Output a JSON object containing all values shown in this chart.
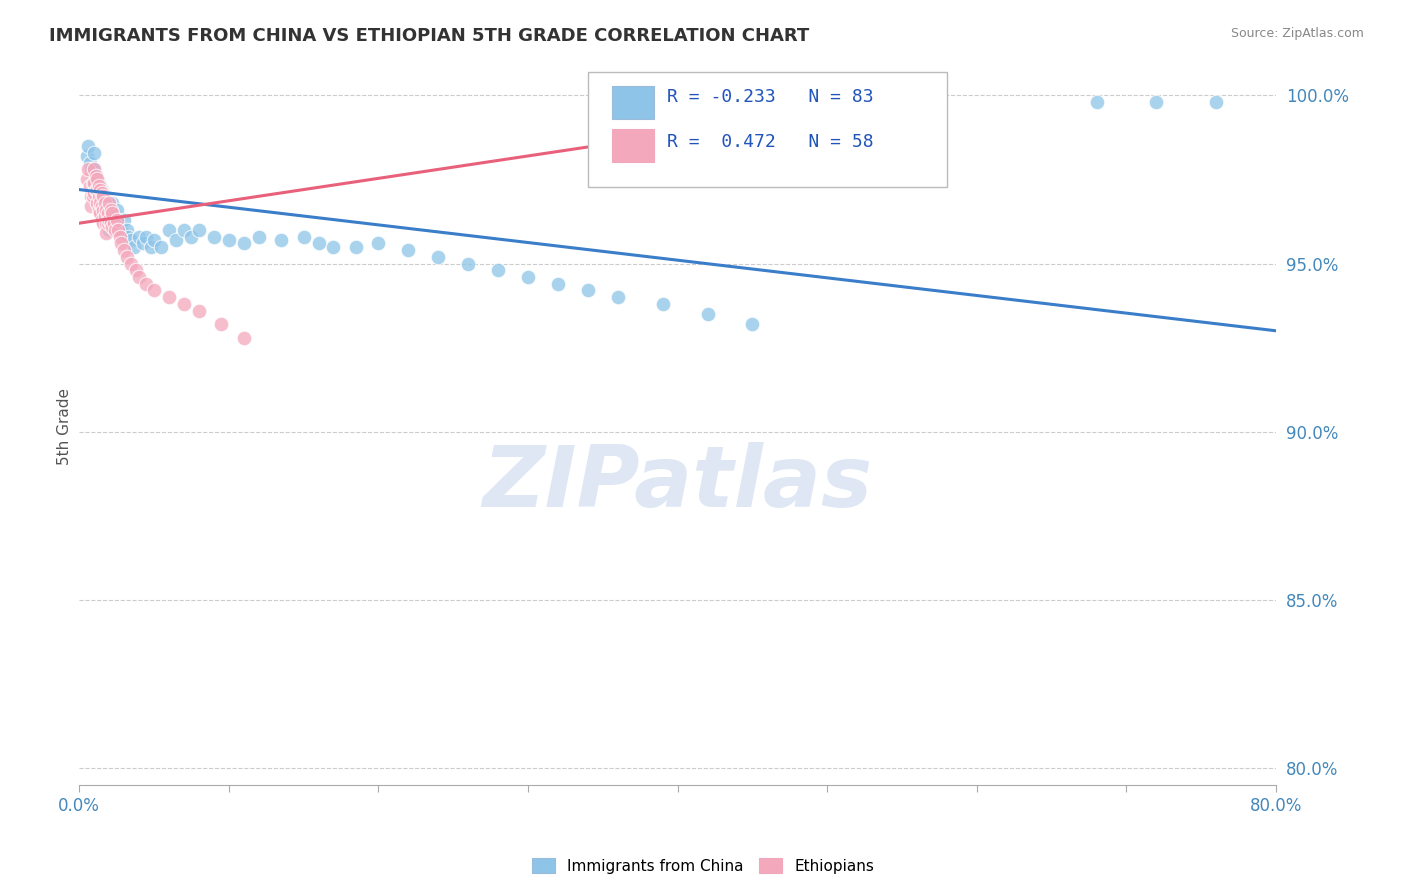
{
  "title": "IMMIGRANTS FROM CHINA VS ETHIOPIAN 5TH GRADE CORRELATION CHART",
  "source_text": "Source: ZipAtlas.com",
  "ylabel": "5th Grade",
  "xlim": [
    0.0,
    0.8
  ],
  "ylim": [
    0.795,
    1.008
  ],
  "xticks": [
    0.0,
    0.1,
    0.2,
    0.3,
    0.4,
    0.5,
    0.6,
    0.7,
    0.8
  ],
  "xticklabels": [
    "0.0%",
    "",
    "",
    "",
    "",
    "",
    "",
    "",
    "80.0%"
  ],
  "yticks": [
    0.8,
    0.85,
    0.9,
    0.95,
    1.0
  ],
  "yticklabels": [
    "80.0%",
    "85.0%",
    "90.0%",
    "95.0%",
    "100.0%"
  ],
  "legend_blue_label": "Immigrants from China",
  "legend_pink_label": "Ethiopians",
  "R_blue": -0.233,
  "N_blue": 83,
  "R_pink": 0.472,
  "N_pink": 58,
  "blue_color": "#8DC4E8",
  "pink_color": "#F4A8BC",
  "blue_line_color": "#3A7DC9",
  "pink_line_color": "#E8607A",
  "watermark_color": "#C8D8EC",
  "blue_line_x0": 0.0,
  "blue_line_y0": 0.972,
  "blue_line_x1": 0.8,
  "blue_line_y1": 0.93,
  "pink_line_x0": 0.0,
  "pink_line_y0": 0.962,
  "pink_line_x1": 0.42,
  "pink_line_y1": 0.99,
  "blue_scatter_x": [
    0.005,
    0.006,
    0.007,
    0.008,
    0.009,
    0.01,
    0.01,
    0.011,
    0.011,
    0.012,
    0.012,
    0.013,
    0.013,
    0.013,
    0.014,
    0.014,
    0.014,
    0.015,
    0.015,
    0.015,
    0.016,
    0.016,
    0.016,
    0.017,
    0.017,
    0.018,
    0.018,
    0.019,
    0.019,
    0.02,
    0.02,
    0.02,
    0.021,
    0.022,
    0.022,
    0.023,
    0.024,
    0.025,
    0.025,
    0.026,
    0.027,
    0.028,
    0.029,
    0.03,
    0.032,
    0.033,
    0.035,
    0.037,
    0.04,
    0.043,
    0.045,
    0.048,
    0.05,
    0.055,
    0.06,
    0.065,
    0.07,
    0.075,
    0.08,
    0.09,
    0.1,
    0.11,
    0.12,
    0.135,
    0.15,
    0.16,
    0.17,
    0.185,
    0.2,
    0.22,
    0.24,
    0.26,
    0.28,
    0.3,
    0.32,
    0.34,
    0.36,
    0.39,
    0.42,
    0.45,
    0.68,
    0.72,
    0.76
  ],
  "blue_scatter_y": [
    0.982,
    0.985,
    0.98,
    0.978,
    0.975,
    0.983,
    0.978,
    0.976,
    0.972,
    0.975,
    0.971,
    0.974,
    0.97,
    0.968,
    0.973,
    0.969,
    0.966,
    0.972,
    0.968,
    0.965,
    0.971,
    0.967,
    0.964,
    0.97,
    0.966,
    0.969,
    0.965,
    0.968,
    0.964,
    0.967,
    0.963,
    0.96,
    0.966,
    0.968,
    0.964,
    0.965,
    0.963,
    0.966,
    0.962,
    0.963,
    0.961,
    0.96,
    0.959,
    0.963,
    0.96,
    0.958,
    0.957,
    0.955,
    0.958,
    0.956,
    0.958,
    0.955,
    0.957,
    0.955,
    0.96,
    0.957,
    0.96,
    0.958,
    0.96,
    0.958,
    0.957,
    0.956,
    0.958,
    0.957,
    0.958,
    0.956,
    0.955,
    0.955,
    0.956,
    0.954,
    0.952,
    0.95,
    0.948,
    0.946,
    0.944,
    0.942,
    0.94,
    0.938,
    0.935,
    0.932,
    0.998,
    0.998,
    0.998
  ],
  "pink_scatter_x": [
    0.005,
    0.006,
    0.007,
    0.008,
    0.008,
    0.009,
    0.009,
    0.01,
    0.01,
    0.01,
    0.011,
    0.011,
    0.012,
    0.012,
    0.012,
    0.013,
    0.013,
    0.013,
    0.014,
    0.014,
    0.014,
    0.015,
    0.015,
    0.015,
    0.016,
    0.016,
    0.016,
    0.017,
    0.017,
    0.018,
    0.018,
    0.018,
    0.019,
    0.019,
    0.02,
    0.02,
    0.021,
    0.021,
    0.022,
    0.022,
    0.023,
    0.024,
    0.025,
    0.026,
    0.027,
    0.028,
    0.03,
    0.032,
    0.035,
    0.038,
    0.04,
    0.045,
    0.05,
    0.06,
    0.07,
    0.08,
    0.095,
    0.11
  ],
  "pink_scatter_y": [
    0.975,
    0.978,
    0.973,
    0.97,
    0.967,
    0.974,
    0.97,
    0.978,
    0.974,
    0.971,
    0.976,
    0.972,
    0.975,
    0.972,
    0.968,
    0.973,
    0.97,
    0.966,
    0.972,
    0.968,
    0.965,
    0.971,
    0.967,
    0.963,
    0.97,
    0.966,
    0.962,
    0.968,
    0.964,
    0.966,
    0.962,
    0.959,
    0.965,
    0.962,
    0.968,
    0.963,
    0.966,
    0.962,
    0.965,
    0.961,
    0.962,
    0.96,
    0.963,
    0.96,
    0.958,
    0.956,
    0.954,
    0.952,
    0.95,
    0.948,
    0.946,
    0.944,
    0.942,
    0.94,
    0.938,
    0.936,
    0.932,
    0.928
  ]
}
